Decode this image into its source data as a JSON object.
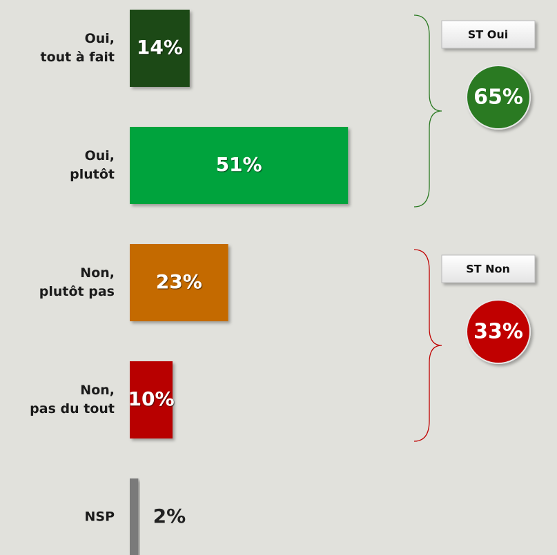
{
  "chart_data": {
    "type": "bar",
    "orientation": "horizontal",
    "categories": [
      "Oui,\ntout à fait",
      "Oui,\nplutôt",
      "Non,\nplutôt pas",
      "Non,\npas du tout",
      "NSP"
    ],
    "values": [
      14,
      51,
      23,
      10,
      2
    ],
    "value_labels": [
      "14%",
      "51%",
      "23%",
      "10%",
      "2%"
    ],
    "colors": [
      "#1b4a12",
      "#00a33c",
      "#c46a00",
      "#b80000",
      "#7a7a7a"
    ],
    "summaries": [
      {
        "label": "ST Oui",
        "value": 65,
        "value_label": "65%",
        "color": "#2a7a22"
      },
      {
        "label": "ST Non",
        "value": 33,
        "value_label": "33%",
        "color": "#c00000"
      }
    ]
  }
}
